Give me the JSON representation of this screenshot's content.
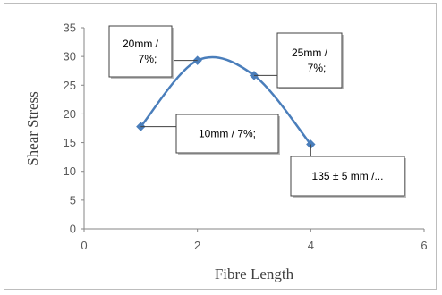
{
  "chart_data": {
    "type": "scatter",
    "title": "",
    "xlabel": "Fibre Length",
    "ylabel": "Shear Stress",
    "xlim": [
      0,
      6
    ],
    "ylim": [
      0,
      35
    ],
    "x_ticks": [
      0,
      2,
      4,
      6
    ],
    "y_ticks": [
      0,
      5,
      10,
      15,
      20,
      25,
      30,
      35
    ],
    "grid": false,
    "smooth_line": true,
    "series": [
      {
        "x": [
          1,
          2,
          3,
          4
        ],
        "y": [
          17.8,
          29.3,
          26.7,
          14.7
        ],
        "color": "#4a7ebb",
        "marker": "diamond"
      }
    ],
    "annotations": [
      {
        "point": 1,
        "lines": [
          "20mm /",
          "7%;"
        ]
      },
      {
        "point": 2,
        "lines": [
          "25mm /",
          "7%;"
        ]
      },
      {
        "point": 0,
        "lines": [
          "10mm / 7%;"
        ]
      },
      {
        "point": 3,
        "lines": [
          "135 ± 5 mm /..."
        ]
      }
    ]
  }
}
